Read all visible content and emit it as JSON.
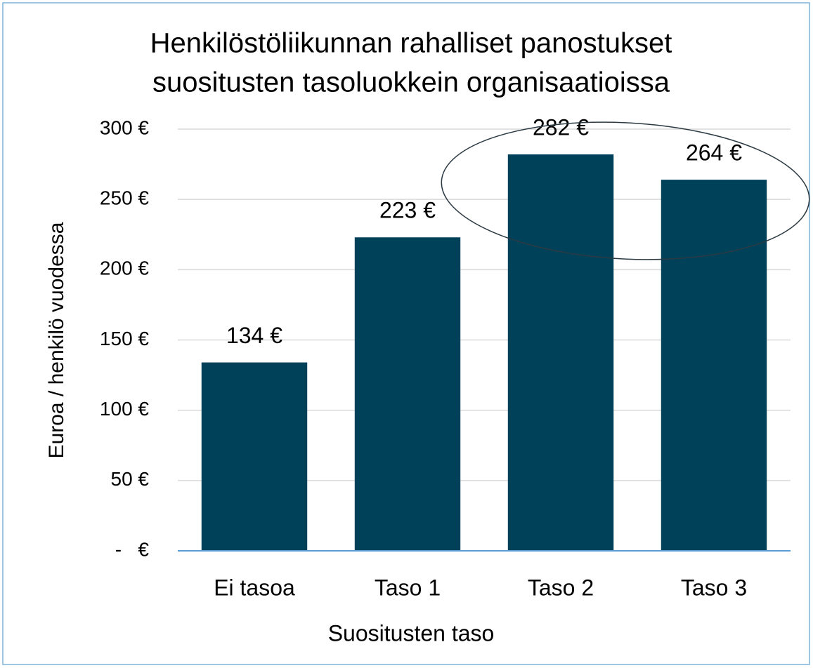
{
  "chart_data": {
    "type": "bar",
    "title": [
      "Henkilöstöliikunnan rahalliset panostukset",
      "suositusten tasoluokkein organisaatioissa"
    ],
    "x_label": "Suositusten taso",
    "y_label": "Euroa / henkilö vuodessa",
    "categories": [
      "Ei tasoa",
      "Taso 1",
      "Taso 2",
      "Taso 3"
    ],
    "values": [
      134,
      223,
      282,
      264
    ],
    "value_labels": [
      "134 €",
      "223 €",
      "282 €",
      "264 €"
    ],
    "color": "#00415a",
    "ylim": [
      0,
      300
    ],
    "yticks": [
      {
        "value": 0,
        "label": "-   €"
      },
      {
        "value": 50,
        "label": "50 €"
      },
      {
        "value": 100,
        "label": "100 €"
      },
      {
        "value": 150,
        "label": "150 €"
      },
      {
        "value": 200,
        "label": "200 €"
      },
      {
        "value": 250,
        "label": "250 €"
      },
      {
        "value": 300,
        "label": "300 €"
      }
    ],
    "grid": true
  }
}
